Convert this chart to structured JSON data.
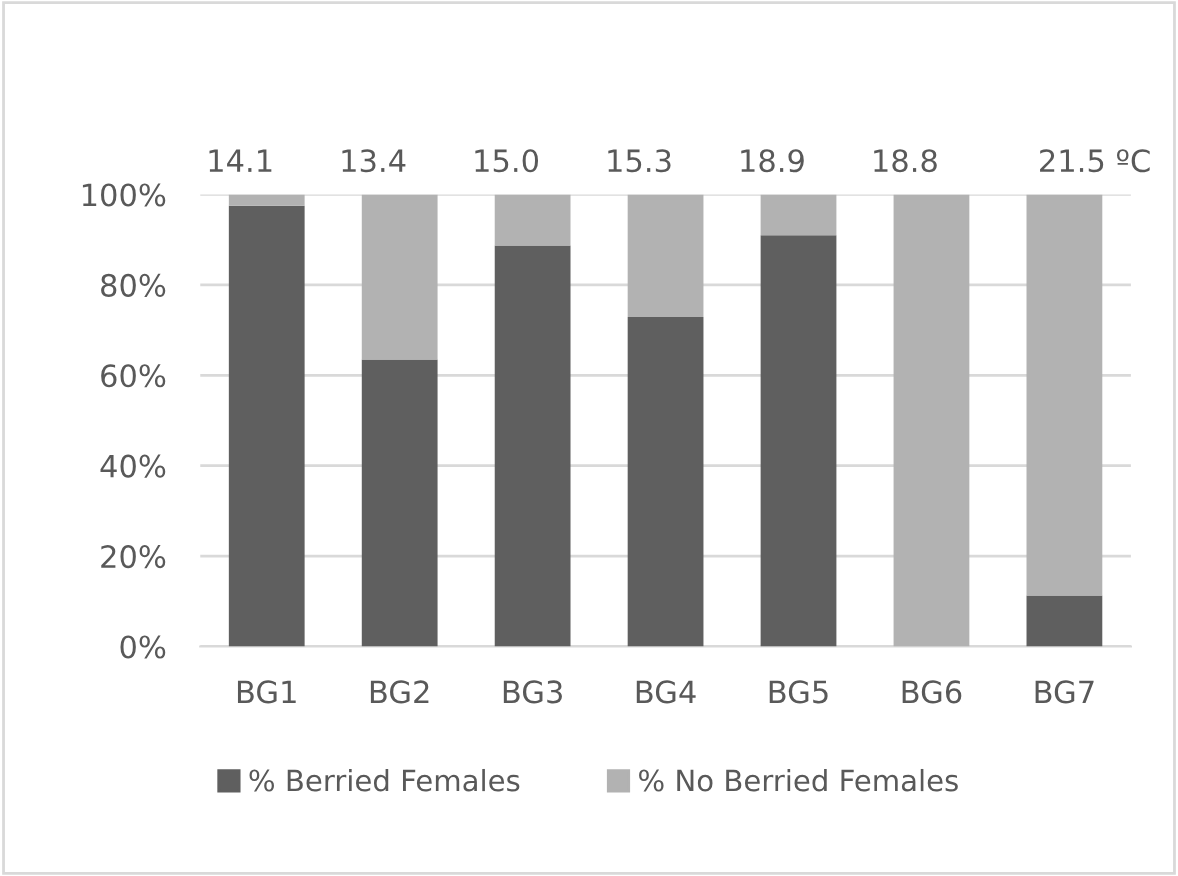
{
  "chart_data": {
    "type": "bar",
    "stacked": true,
    "categories": [
      "BG1",
      "BG2",
      "BG3",
      "BG4",
      "BG5",
      "BG6",
      "BG7"
    ],
    "series": [
      {
        "name": "% Berried Females",
        "color": "#5f5f5f",
        "values": [
          97.5,
          63.5,
          88.7,
          72.9,
          91.0,
          0,
          11.3
        ]
      },
      {
        "name": "% No Berried Females",
        "color": "#b2b2b2",
        "values": [
          2.5,
          36.5,
          11.3,
          27.1,
          9.0,
          100,
          88.7
        ]
      }
    ],
    "annotations": [
      "14.1",
      "13.4",
      "15.0",
      "15.3",
      "18.9",
      "18.8",
      "21.5 ºC"
    ],
    "ylim": [
      0,
      100
    ],
    "yticks": [
      {
        "value": 0,
        "label": "0%"
      },
      {
        "value": 20,
        "label": "20%"
      },
      {
        "value": 40,
        "label": "40%"
      },
      {
        "value": 60,
        "label": "60%"
      },
      {
        "value": 80,
        "label": "80%"
      },
      {
        "value": 100,
        "label": "100%"
      }
    ],
    "grid": "y",
    "legend": "bottom"
  }
}
